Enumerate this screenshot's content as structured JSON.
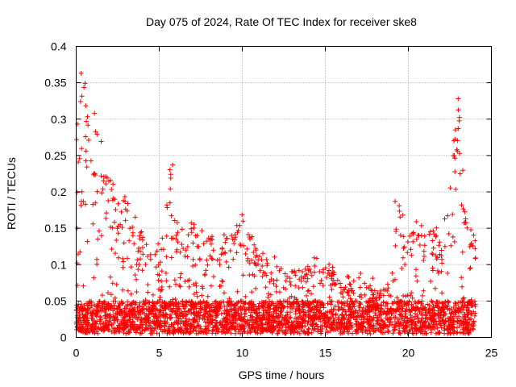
{
  "chart_data": {
    "type": "scatter",
    "title": "Day 075 of 2024, Rate Of TEC Index for receiver ske8",
    "xlabel": "GPS time / hours",
    "ylabel": "ROTI / TECUs",
    "xlim": [
      0,
      25
    ],
    "ylim": [
      0,
      0.4
    ],
    "grid": true,
    "marker": "+",
    "series_color": "#ff0000",
    "x_ticks": [
      0,
      5,
      10,
      15,
      20,
      25
    ],
    "x_tick_labels": [
      "0",
      "5",
      "10",
      "15",
      "20",
      "25"
    ],
    "y_ticks": [
      0,
      0.05,
      0.1,
      0.15,
      0.2,
      0.25,
      0.3,
      0.35,
      0.4
    ],
    "y_tick_labels": [
      "0",
      "0.05",
      "0.1",
      "0.15",
      "0.2",
      "0.25",
      "0.3",
      "0.35",
      "0.4"
    ],
    "envelope": {
      "description": "approximate per-hour upper envelope of ROTI values (data units)",
      "hours": [
        0,
        0.5,
        1,
        1.5,
        2,
        3,
        4,
        5,
        5.7,
        6,
        7,
        8,
        9,
        10,
        11,
        12,
        13,
        14,
        15,
        16,
        17,
        18,
        19,
        19.3,
        20,
        21,
        22,
        22.5,
        23,
        23.5,
        24
      ],
      "max_roti": [
        0.3,
        0.36,
        0.3,
        0.27,
        0.22,
        0.2,
        0.14,
        0.12,
        0.24,
        0.15,
        0.15,
        0.14,
        0.14,
        0.16,
        0.12,
        0.1,
        0.09,
        0.1,
        0.1,
        0.08,
        0.08,
        0.07,
        0.08,
        0.19,
        0.15,
        0.16,
        0.14,
        0.2,
        0.33,
        0.15,
        0.14
      ]
    },
    "notable_points": [
      {
        "x": 0.3,
        "y": 0.363
      },
      {
        "x": 1.1,
        "y": 0.308
      },
      {
        "x": 23.0,
        "y": 0.328
      },
      {
        "x": 23.0,
        "y": 0.287
      },
      {
        "x": 5.8,
        "y": 0.237
      },
      {
        "x": 19.2,
        "y": 0.187
      }
    ]
  }
}
